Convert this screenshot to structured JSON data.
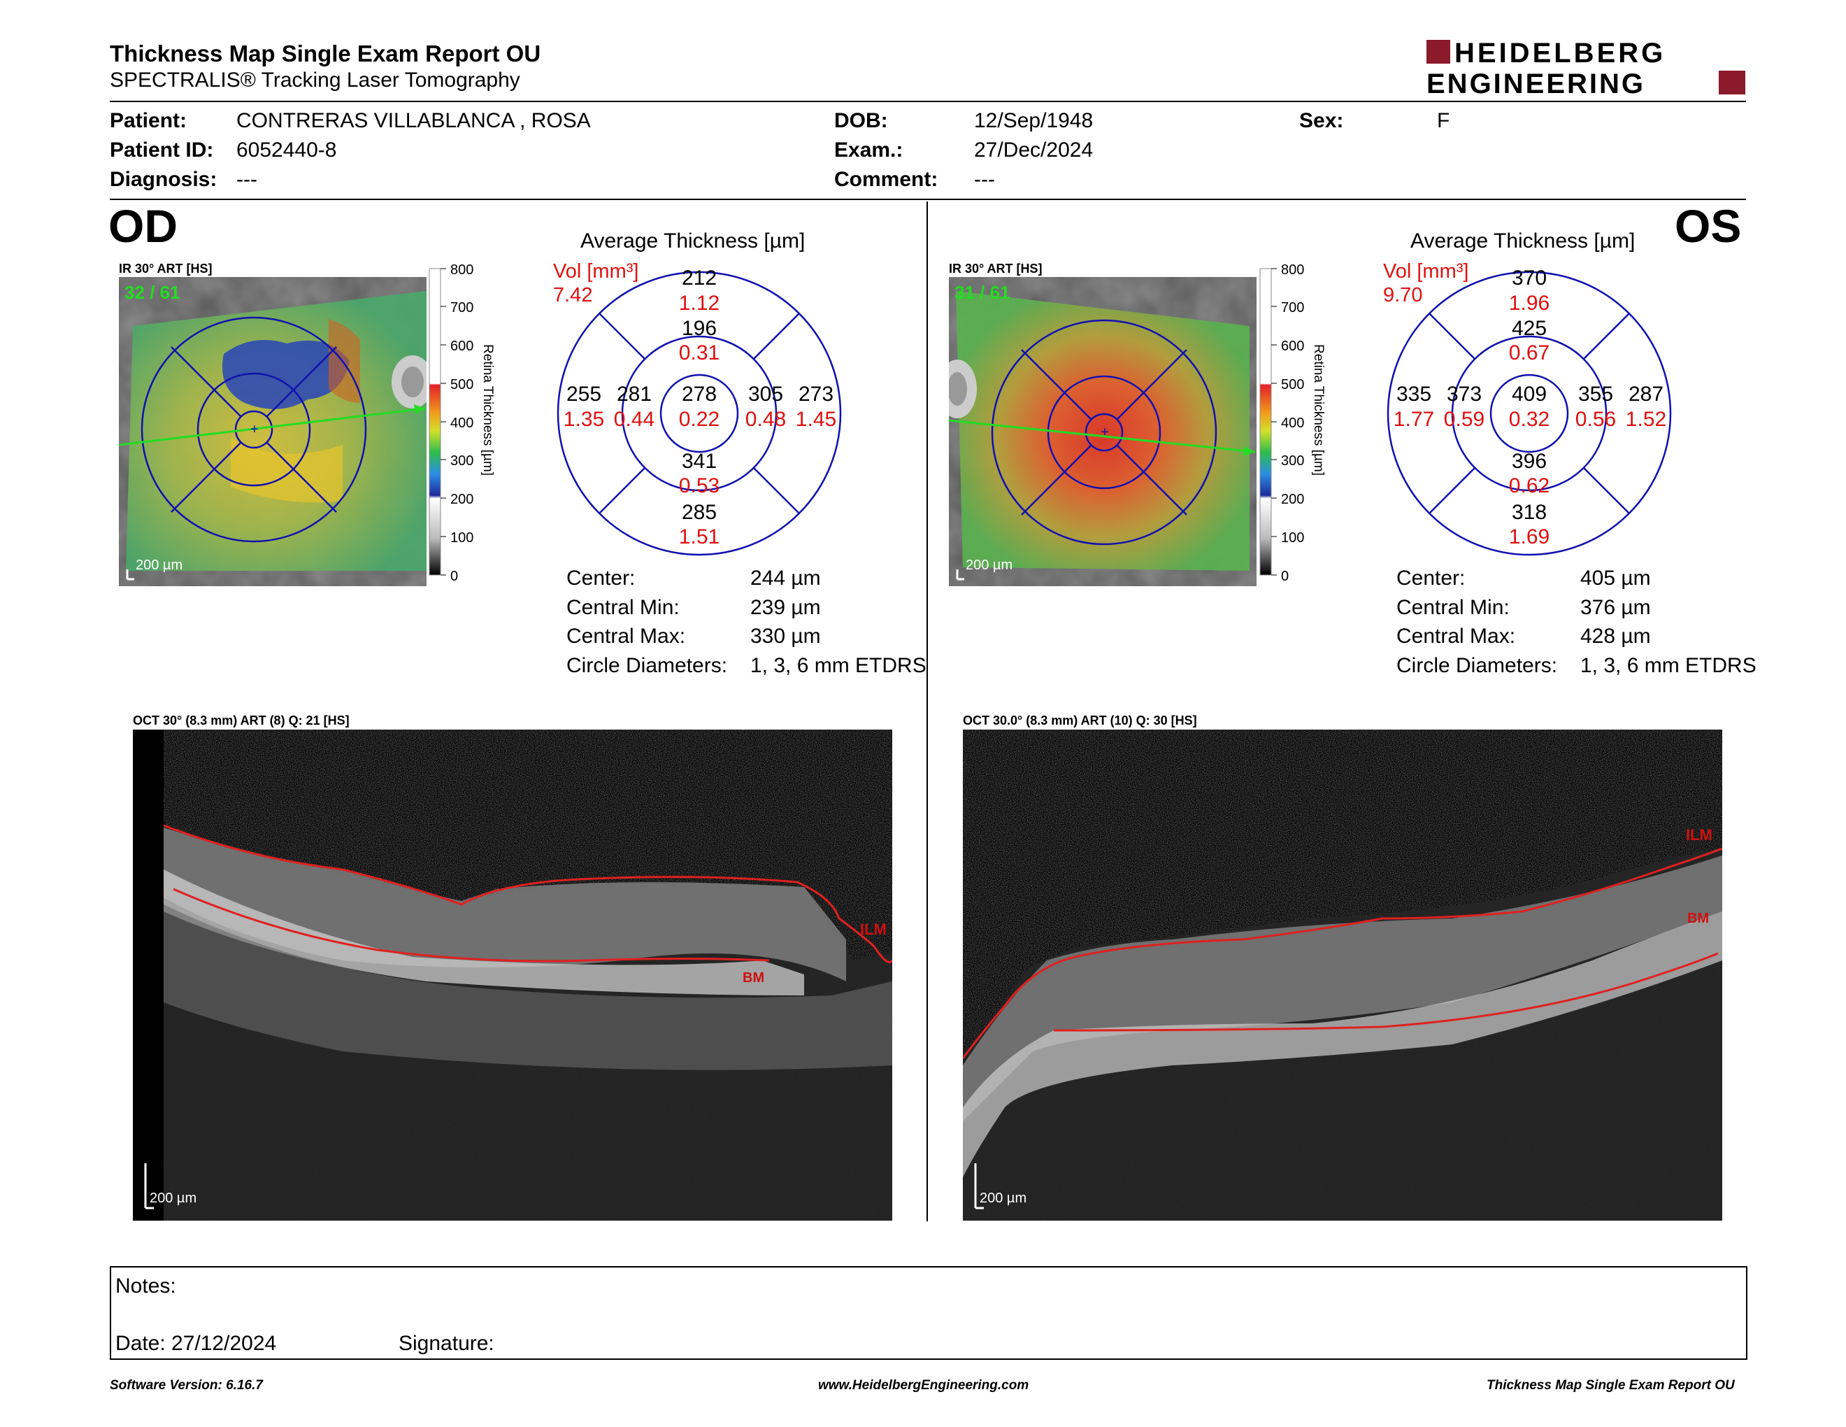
{
  "header": {
    "title": "Thickness Map Single Exam Report OU",
    "subtitle": "SPECTRALIS® Tracking Laser Tomography",
    "logo_top": "HEIDELBERG",
    "logo_bottom": "ENGINEERING"
  },
  "patient": {
    "patient_label": "Patient:",
    "patient_value": "CONTRERAS VILLABLANCA , ROSA",
    "id_label": "Patient ID:",
    "id_value": "6052440-8",
    "diag_label": "Diagnosis:",
    "diag_value": "---",
    "dob_label": "DOB:",
    "dob_value": "12/Sep/1948",
    "exam_label": "Exam.:",
    "exam_value": "27/Dec/2024",
    "comment_label": "Comment:",
    "comment_value": "---",
    "sex_label": "Sex:",
    "sex_value": "F"
  },
  "colorbar": {
    "ticks": [
      "800",
      "700",
      "600",
      "500",
      "400",
      "300",
      "200",
      "100",
      "0"
    ],
    "label": "Retina  Thickness [µm]"
  },
  "od": {
    "eye": "OD",
    "ir_label": "IR 30° ART [HS]",
    "frame": "32 / 61",
    "scale": "200 µm",
    "avg_title": "Average Thickness [µm]",
    "vol_label": "Vol [mm³]",
    "vol_value": "7.42",
    "grid": {
      "center_t": "278",
      "center_v": "0.22",
      "inner_sup_t": "196",
      "inner_sup_v": "0.31",
      "inner_inf_t": "341",
      "inner_inf_v": "0.53",
      "inner_left_t": "281",
      "inner_left_v": "0.44",
      "inner_right_t": "305",
      "inner_right_v": "0.48",
      "outer_sup_t": "212",
      "outer_sup_v": "1.12",
      "outer_inf_t": "285",
      "outer_inf_v": "1.51",
      "outer_left_t": "255",
      "outer_left_v": "1.35",
      "outer_right_t": "273",
      "outer_right_v": "1.45"
    },
    "stats": {
      "center_l": "Center:",
      "center_v": "244 µm",
      "min_l": "Central Min:",
      "min_v": "239 µm",
      "max_l": "Central Max:",
      "max_v": "330 µm",
      "diam_l": "Circle Diameters:",
      "diam_v": "1, 3, 6 mm ETDRS"
    },
    "oct_label": "OCT 30° (8.3 mm) ART (8) Q: 21 [HS]",
    "oct_scale": "200 µm",
    "ilm": "ILM",
    "bm": "BM"
  },
  "os": {
    "eye": "OS",
    "ir_label": "IR 30° ART [HS]",
    "frame": "31 / 61",
    "scale": "200 µm",
    "avg_title": "Average Thickness [µm]",
    "vol_label": "Vol [mm³]",
    "vol_value": "9.70",
    "grid": {
      "center_t": "409",
      "center_v": "0.32",
      "inner_sup_t": "425",
      "inner_sup_v": "0.67",
      "inner_inf_t": "396",
      "inner_inf_v": "0.62",
      "inner_left_t": "373",
      "inner_left_v": "0.59",
      "inner_right_t": "355",
      "inner_right_v": "0.56",
      "outer_sup_t": "370",
      "outer_sup_v": "1.96",
      "outer_inf_t": "318",
      "outer_inf_v": "1.69",
      "outer_left_t": "335",
      "outer_left_v": "1.77",
      "outer_right_t": "287",
      "outer_right_v": "1.52"
    },
    "stats": {
      "center_l": "Center:",
      "center_v": "405 µm",
      "min_l": "Central Min:",
      "min_v": "376 µm",
      "max_l": "Central Max:",
      "max_v": "428 µm",
      "diam_l": "Circle Diameters:",
      "diam_v": "1, 3, 6 mm ETDRS"
    },
    "oct_label": "OCT 30.0° (8.3 mm) ART (10) Q: 30 [HS]",
    "oct_scale": "200 µm",
    "ilm": "ILM",
    "bm": "BM"
  },
  "notes": {
    "notes_label": "Notes:",
    "date_label": "Date: 27/12/2024",
    "signature_label": "Signature:"
  },
  "footer": {
    "software": "Software Version: 6.16.7",
    "website": "www.HeidelbergEngineering.com",
    "report": "Thickness Map Single Exam Report OU"
  },
  "colors": {
    "grid_blue": "#1010b0",
    "volume_red": "#e01010",
    "segment_line": "#e02020",
    "scan_line": "#22dd22",
    "logo_red": "#8b1a2b"
  }
}
